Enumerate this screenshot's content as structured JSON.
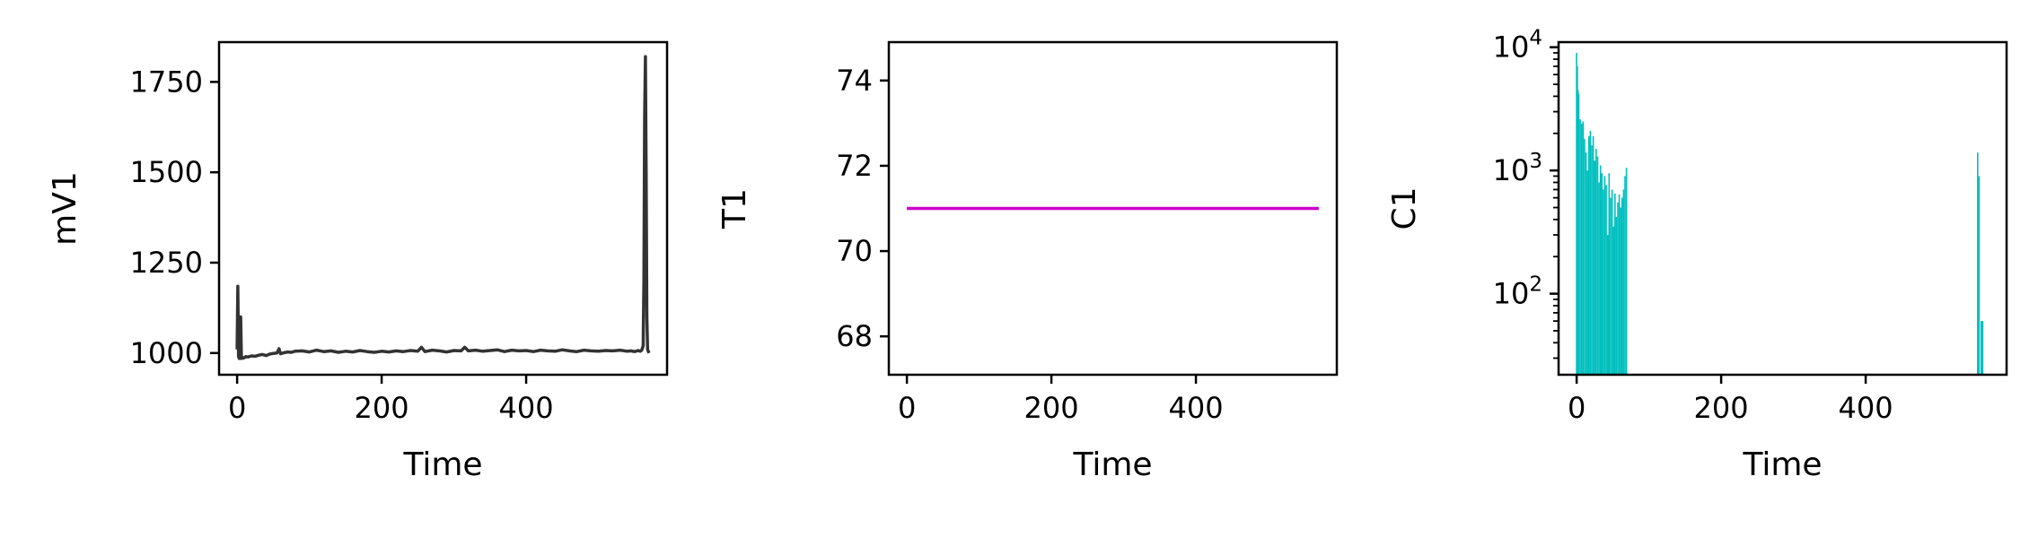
{
  "chart_data": [
    {
      "type": "line",
      "title": "",
      "xlabel": "Time",
      "ylabel": "mV1",
      "xlim": [
        -25,
        595
      ],
      "ylim": [
        940,
        1860
      ],
      "xticks": [
        0,
        200,
        400
      ],
      "yticks": [
        1000,
        1250,
        1500,
        1750
      ],
      "xtick_labels": [
        "0",
        "200",
        "400"
      ],
      "ytick_labels": [
        "1000",
        "1250",
        "1500",
        "1750"
      ],
      "grid": false,
      "yscale": "linear",
      "series": [
        {
          "color": "#333333",
          "x": [
            0,
            1,
            2,
            3,
            4,
            5,
            6,
            7,
            8,
            10,
            12,
            15,
            20,
            25,
            30,
            35,
            40,
            45,
            50,
            55,
            58,
            60,
            65,
            70,
            75,
            80,
            90,
            100,
            110,
            120,
            130,
            140,
            150,
            160,
            170,
            180,
            190,
            200,
            210,
            220,
            230,
            240,
            250,
            255,
            260,
            270,
            280,
            290,
            300,
            310,
            315,
            320,
            330,
            340,
            350,
            360,
            370,
            380,
            390,
            400,
            410,
            420,
            430,
            440,
            450,
            460,
            470,
            480,
            490,
            500,
            510,
            520,
            530,
            540,
            545,
            550,
            555,
            558,
            560,
            562,
            563,
            564,
            565,
            566,
            567,
            568,
            569,
            570
          ],
          "y": [
            1010,
            1185,
            990,
            985,
            1000,
            1100,
            985,
            988,
            986,
            987,
            990,
            989,
            992,
            991,
            994,
            996,
            993,
            997,
            999,
            1000,
            1012,
            998,
            1001,
            1003,
            1002,
            1005,
            1006,
            1003,
            1008,
            1004,
            1006,
            1002,
            1005,
            1003,
            1007,
            1004,
            1002,
            1005,
            1003,
            1006,
            1004,
            1007,
            1005,
            1016,
            1004,
            1008,
            1006,
            1003,
            1007,
            1006,
            1016,
            1006,
            1008,
            1005,
            1007,
            1009,
            1004,
            1008,
            1006,
            1007,
            1004,
            1008,
            1006,
            1005,
            1009,
            1006,
            1004,
            1008,
            1006,
            1005,
            1007,
            1006,
            1008,
            1005,
            1006,
            1004,
            1007,
            1005,
            1008,
            1020,
            1200,
            1650,
            1820,
            1500,
            1100,
            1010,
            1005,
            1000
          ]
        }
      ]
    },
    {
      "type": "line",
      "title": "",
      "xlabel": "Time",
      "ylabel": "T1",
      "xlim": [
        -25,
        595
      ],
      "ylim": [
        67.1,
        74.9
      ],
      "xticks": [
        0,
        200,
        400
      ],
      "yticks": [
        68,
        70,
        72,
        74
      ],
      "xtick_labels": [
        "0",
        "200",
        "400"
      ],
      "ytick_labels": [
        "68",
        "70",
        "72",
        "74"
      ],
      "grid": false,
      "yscale": "linear",
      "series": [
        {
          "color": "#cc00cc",
          "x": [
            0,
            570
          ],
          "y": [
            71,
            71
          ]
        }
      ]
    },
    {
      "type": "bar",
      "title": "",
      "xlabel": "Time",
      "ylabel": "C1",
      "xlim": [
        -25,
        595
      ],
      "ylim": [
        22,
        11000
      ],
      "yscale": "log",
      "xticks": [
        0,
        200,
        400
      ],
      "xtick_labels": [
        "0",
        "200",
        "400"
      ],
      "ytick_exponents": [
        2,
        3,
        4
      ],
      "ytick_base": "10",
      "grid": false,
      "series": [
        {
          "color": "#00bfbf",
          "x": [
            0,
            1,
            2,
            3,
            5,
            7,
            9,
            11,
            13,
            15,
            17,
            19,
            21,
            23,
            25,
            27,
            29,
            31,
            33,
            35,
            37,
            39,
            41,
            43,
            45,
            47,
            49,
            51,
            53,
            55,
            57,
            59,
            61,
            63,
            65,
            67,
            69,
            555,
            557,
            560,
            562
          ],
          "y": [
            9000,
            7000,
            4500,
            4200,
            2600,
            2400,
            2500,
            1800,
            1400,
            1000,
            1900,
            2100,
            1600,
            1900,
            1200,
            1500,
            1300,
            800,
            1100,
            950,
            700,
            900,
            760,
            300,
            950,
            600,
            700,
            350,
            650,
            420,
            550,
            640,
            500,
            600,
            700,
            900,
            1050,
            1400,
            900,
            60,
            60
          ]
        }
      ]
    }
  ]
}
